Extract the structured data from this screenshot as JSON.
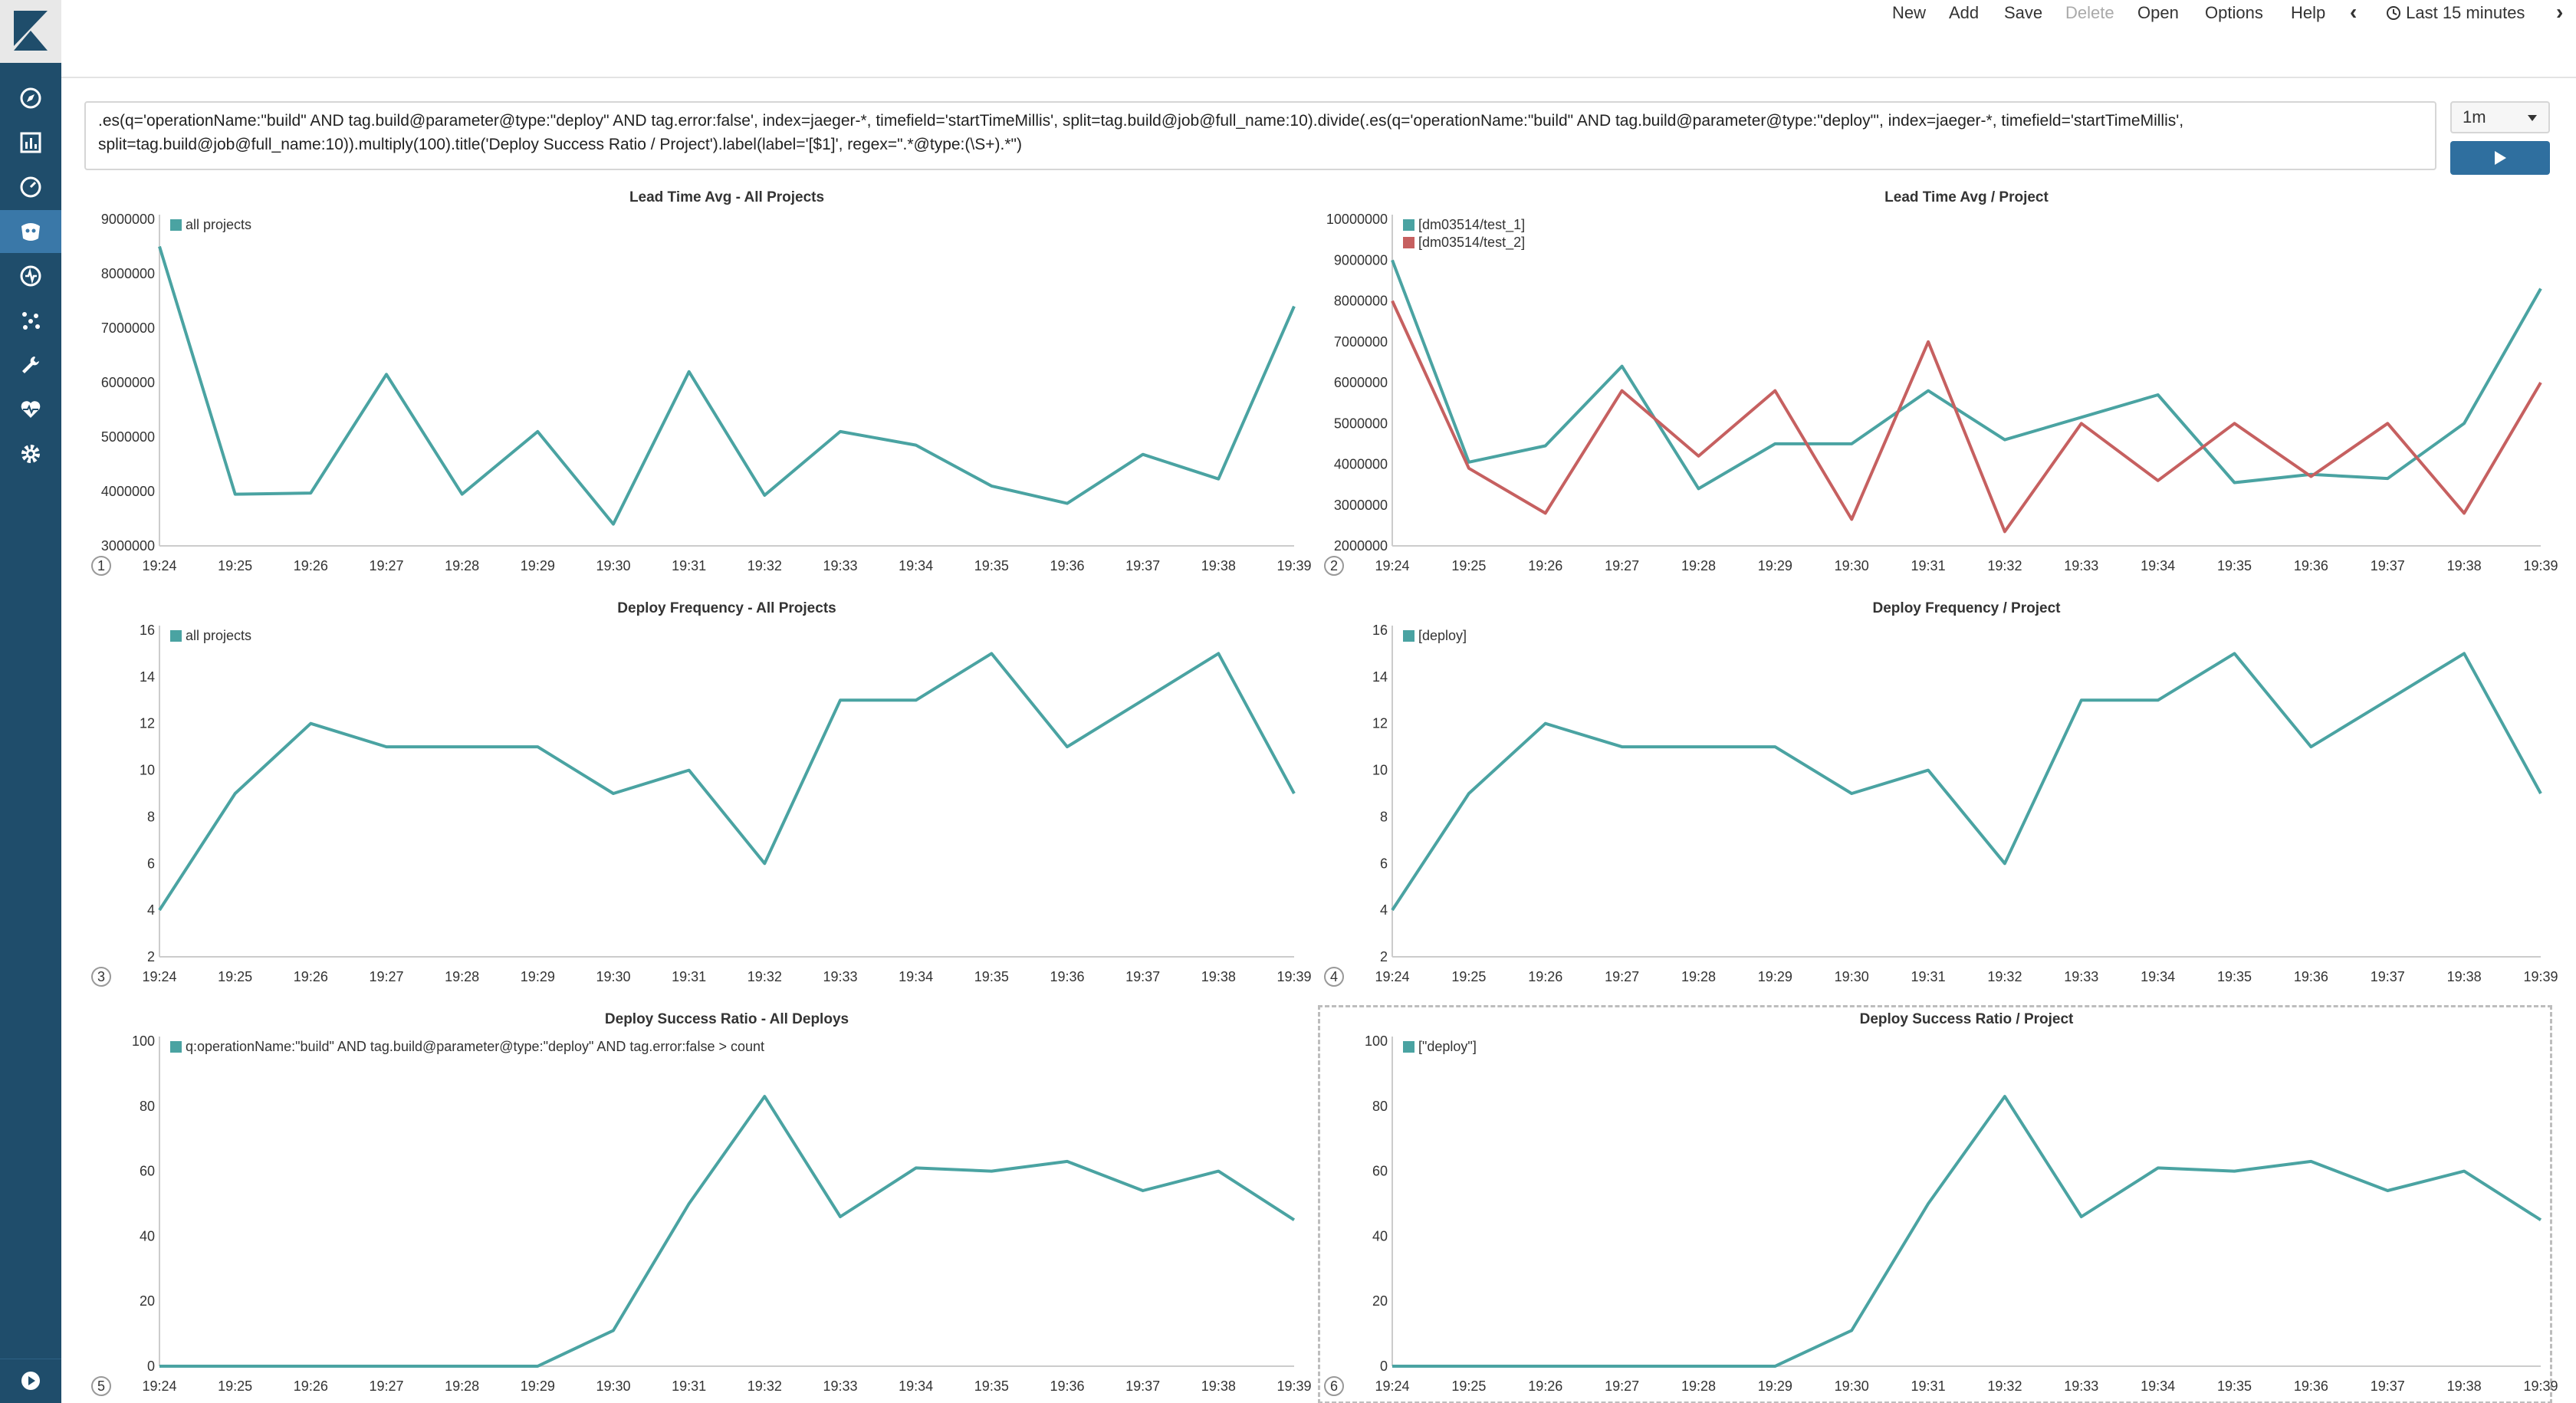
{
  "app": {
    "logo_icon": "kibana-logo-icon"
  },
  "sidebar": {
    "items": [
      {
        "icon": "compass-icon",
        "name": "sidebar-item-discover"
      },
      {
        "icon": "bar-chart-icon",
        "name": "sidebar-item-visualize"
      },
      {
        "icon": "dashboard-icon",
        "name": "sidebar-item-dashboard"
      },
      {
        "icon": "timelion-icon",
        "name": "sidebar-item-timelion",
        "active": true
      },
      {
        "icon": "apm-icon",
        "name": "sidebar-item-apm"
      },
      {
        "icon": "ml-icon",
        "name": "sidebar-item-machine-learning"
      },
      {
        "icon": "wrench-icon",
        "name": "sidebar-item-dev-tools"
      },
      {
        "icon": "heartbeat-icon",
        "name": "sidebar-item-monitoring"
      },
      {
        "icon": "gear-icon",
        "name": "sidebar-item-management"
      }
    ],
    "collapse_icon": "play-circle-icon"
  },
  "menu": {
    "new": "New",
    "add": "Add",
    "save": "Save",
    "delete": "Delete",
    "open": "Open",
    "options": "Options",
    "help": "Help",
    "time": "Last 15 minutes"
  },
  "query": {
    "line1": ".es(q='operationName:\"build\" AND tag.build@parameter@type:\"deploy\" AND tag.error:false', index=jaeger-*, timefield='startTimeMillis', split=tag.build@job@full_name:10).divide(.es(q='operationName:\"build\" AND tag.build@parameter@type:\"deploy\"', index=jaeger-*, timefield='startTimeMillis',",
    "line2": "split=tag.build@job@full_name:10)).multiply(100).title('Deploy Success Ratio / Project').label(label='[$1]', regex=\".*@type:(\\S+).*\")",
    "interval": "1m"
  },
  "colors": {
    "teal": "#4aa3a2",
    "red": "#c66060"
  },
  "chart_data": [
    {
      "type": "line",
      "panel_number": "1",
      "title": "Lead Time Avg - All Projects",
      "categories": [
        "19:24",
        "19:25",
        "19:26",
        "19:27",
        "19:28",
        "19:29",
        "19:30",
        "19:31",
        "19:32",
        "19:33",
        "19:34",
        "19:35",
        "19:36",
        "19:37",
        "19:38",
        "19:39"
      ],
      "ylim": [
        3000000,
        9000000
      ],
      "yticks": [
        "9000000",
        "8000000",
        "7000000",
        "6000000",
        "5000000",
        "4000000",
        "3000000"
      ],
      "series": [
        {
          "name": "all projects",
          "color": "#4aa3a2",
          "values": [
            8500000,
            3950000,
            3970000,
            6150000,
            3950000,
            5100000,
            3400000,
            6200000,
            3930000,
            5100000,
            4850000,
            4100000,
            3780000,
            4680000,
            4230000,
            7400000
          ]
        }
      ]
    },
    {
      "type": "line",
      "panel_number": "2",
      "title": "Lead Time Avg / Project",
      "categories": [
        "19:24",
        "19:25",
        "19:26",
        "19:27",
        "19:28",
        "19:29",
        "19:30",
        "19:31",
        "19:32",
        "19:33",
        "19:34",
        "19:35",
        "19:36",
        "19:37",
        "19:38",
        "19:39"
      ],
      "ylim": [
        2000000,
        10000000
      ],
      "yticks": [
        "10000000",
        "9000000",
        "8000000",
        "7000000",
        "6000000",
        "5000000",
        "4000000",
        "3000000",
        "2000000"
      ],
      "series": [
        {
          "name": "[dm03514/test_1]",
          "color": "#4aa3a2",
          "values": [
            9000000,
            4050000,
            4450000,
            6400000,
            3400000,
            4500000,
            4500000,
            5800000,
            4600000,
            5150000,
            5700000,
            3550000,
            3750000,
            3650000,
            5000000,
            8300000
          ]
        },
        {
          "name": "[dm03514/test_2]",
          "color": "#c66060",
          "values": [
            8000000,
            3900000,
            2800000,
            5800000,
            4200000,
            5800000,
            2650000,
            7000000,
            2350000,
            5000000,
            3600000,
            5000000,
            3700000,
            5000000,
            2800000,
            6000000
          ]
        }
      ]
    },
    {
      "type": "line",
      "panel_number": "3",
      "title": "Deploy Frequency - All Projects",
      "categories": [
        "19:24",
        "19:25",
        "19:26",
        "19:27",
        "19:28",
        "19:29",
        "19:30",
        "19:31",
        "19:32",
        "19:33",
        "19:34",
        "19:35",
        "19:36",
        "19:37",
        "19:38",
        "19:39"
      ],
      "ylim": [
        2,
        16
      ],
      "yticks": [
        "16",
        "14",
        "12",
        "10",
        "8",
        "6",
        "4",
        "2"
      ],
      "series": [
        {
          "name": "all projects",
          "color": "#4aa3a2",
          "values": [
            4,
            9,
            12,
            11,
            11,
            11,
            9,
            10,
            6,
            13,
            13,
            15,
            11,
            13,
            15,
            9
          ]
        }
      ]
    },
    {
      "type": "line",
      "panel_number": "4",
      "title": "Deploy Frequency / Project",
      "categories": [
        "19:24",
        "19:25",
        "19:26",
        "19:27",
        "19:28",
        "19:29",
        "19:30",
        "19:31",
        "19:32",
        "19:33",
        "19:34",
        "19:35",
        "19:36",
        "19:37",
        "19:38",
        "19:39"
      ],
      "ylim": [
        2,
        16
      ],
      "yticks": [
        "16",
        "14",
        "12",
        "10",
        "8",
        "6",
        "4",
        "2"
      ],
      "series": [
        {
          "name": "[deploy]",
          "color": "#4aa3a2",
          "values": [
            4,
            9,
            12,
            11,
            11,
            11,
            9,
            10,
            6,
            13,
            13,
            15,
            11,
            13,
            15,
            9
          ]
        }
      ]
    },
    {
      "type": "line",
      "panel_number": "5",
      "title": "Deploy Success Ratio - All Deploys",
      "categories": [
        "19:24",
        "19:25",
        "19:26",
        "19:27",
        "19:28",
        "19:29",
        "19:30",
        "19:31",
        "19:32",
        "19:33",
        "19:34",
        "19:35",
        "19:36",
        "19:37",
        "19:38",
        "19:39"
      ],
      "ylim": [
        0,
        100
      ],
      "yticks": [
        "100",
        "80",
        "60",
        "40",
        "20",
        "0"
      ],
      "series": [
        {
          "name": "q:operationName:\"build\" AND tag.build@parameter@type:\"deploy\" AND tag.error:false > count",
          "color": "#4aa3a2",
          "values": [
            0,
            0,
            0,
            0,
            0,
            0,
            11,
            50,
            83,
            46,
            61,
            60,
            63,
            54,
            60,
            45
          ]
        }
      ]
    },
    {
      "type": "line",
      "panel_number": "6",
      "title": "Deploy Success Ratio / Project",
      "selected": true,
      "categories": [
        "19:24",
        "19:25",
        "19:26",
        "19:27",
        "19:28",
        "19:29",
        "19:30",
        "19:31",
        "19:32",
        "19:33",
        "19:34",
        "19:35",
        "19:36",
        "19:37",
        "19:38",
        "19:39"
      ],
      "ylim": [
        0,
        100
      ],
      "yticks": [
        "100",
        "80",
        "60",
        "40",
        "20",
        "0"
      ],
      "series": [
        {
          "name": "[\"deploy\"]",
          "color": "#4aa3a2",
          "values": [
            0,
            0,
            0,
            0,
            0,
            0,
            11,
            50,
            83,
            46,
            61,
            60,
            63,
            54,
            60,
            45
          ]
        }
      ]
    }
  ]
}
